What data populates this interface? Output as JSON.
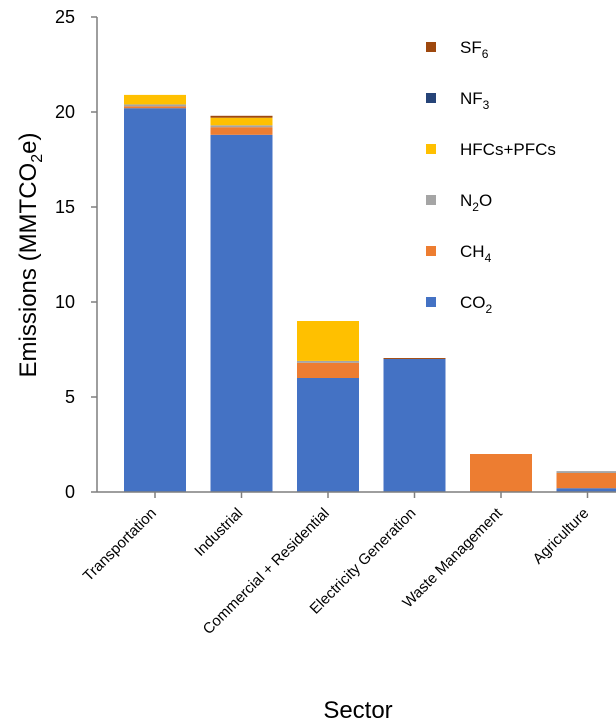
{
  "chart_data": {
    "type": "bar",
    "stacked": true,
    "categories": [
      "Transportation",
      "Industrial",
      "Commercial + Residential",
      "Electricity Generation",
      "Waste Management",
      "Agriculture"
    ],
    "series": [
      {
        "name": "CO",
        "sub": "2",
        "color": "#4472C4",
        "values": [
          20.2,
          18.8,
          6.0,
          7.0,
          0.0,
          0.2
        ]
      },
      {
        "name": "CH",
        "sub": "4",
        "color": "#ED7D31",
        "values": [
          0.1,
          0.4,
          0.8,
          0.0,
          2.0,
          0.8
        ]
      },
      {
        "name": "N",
        "sub": "2",
        "after": "O",
        "color": "#A5A5A5",
        "values": [
          0.1,
          0.1,
          0.1,
          0.0,
          0.0,
          0.1
        ]
      },
      {
        "name": "HFCs+PFCs",
        "color": "#FFC000",
        "values": [
          0.5,
          0.4,
          2.1,
          0.0,
          0.0,
          0.0
        ]
      },
      {
        "name": "NF",
        "sub": "3",
        "color": "#264478",
        "values": [
          0.0,
          0.0,
          0.0,
          0.0,
          0.0,
          0.0
        ]
      },
      {
        "name": "SF",
        "sub": "6",
        "color": "#9E480E",
        "values": [
          0.0,
          0.1,
          0.0,
          0.05,
          0.0,
          0.0
        ]
      }
    ],
    "ylim": [
      0,
      25
    ],
    "yticks": [
      0,
      5,
      10,
      15,
      20,
      25
    ],
    "ylabel": {
      "pre": "Emissions (MMTCO",
      "sub": "2",
      "post": "e)"
    },
    "xlabel": "Sector",
    "legend": {
      "placement": "top-right",
      "order": [
        5,
        4,
        3,
        2,
        1,
        0
      ]
    },
    "grid": false
  }
}
